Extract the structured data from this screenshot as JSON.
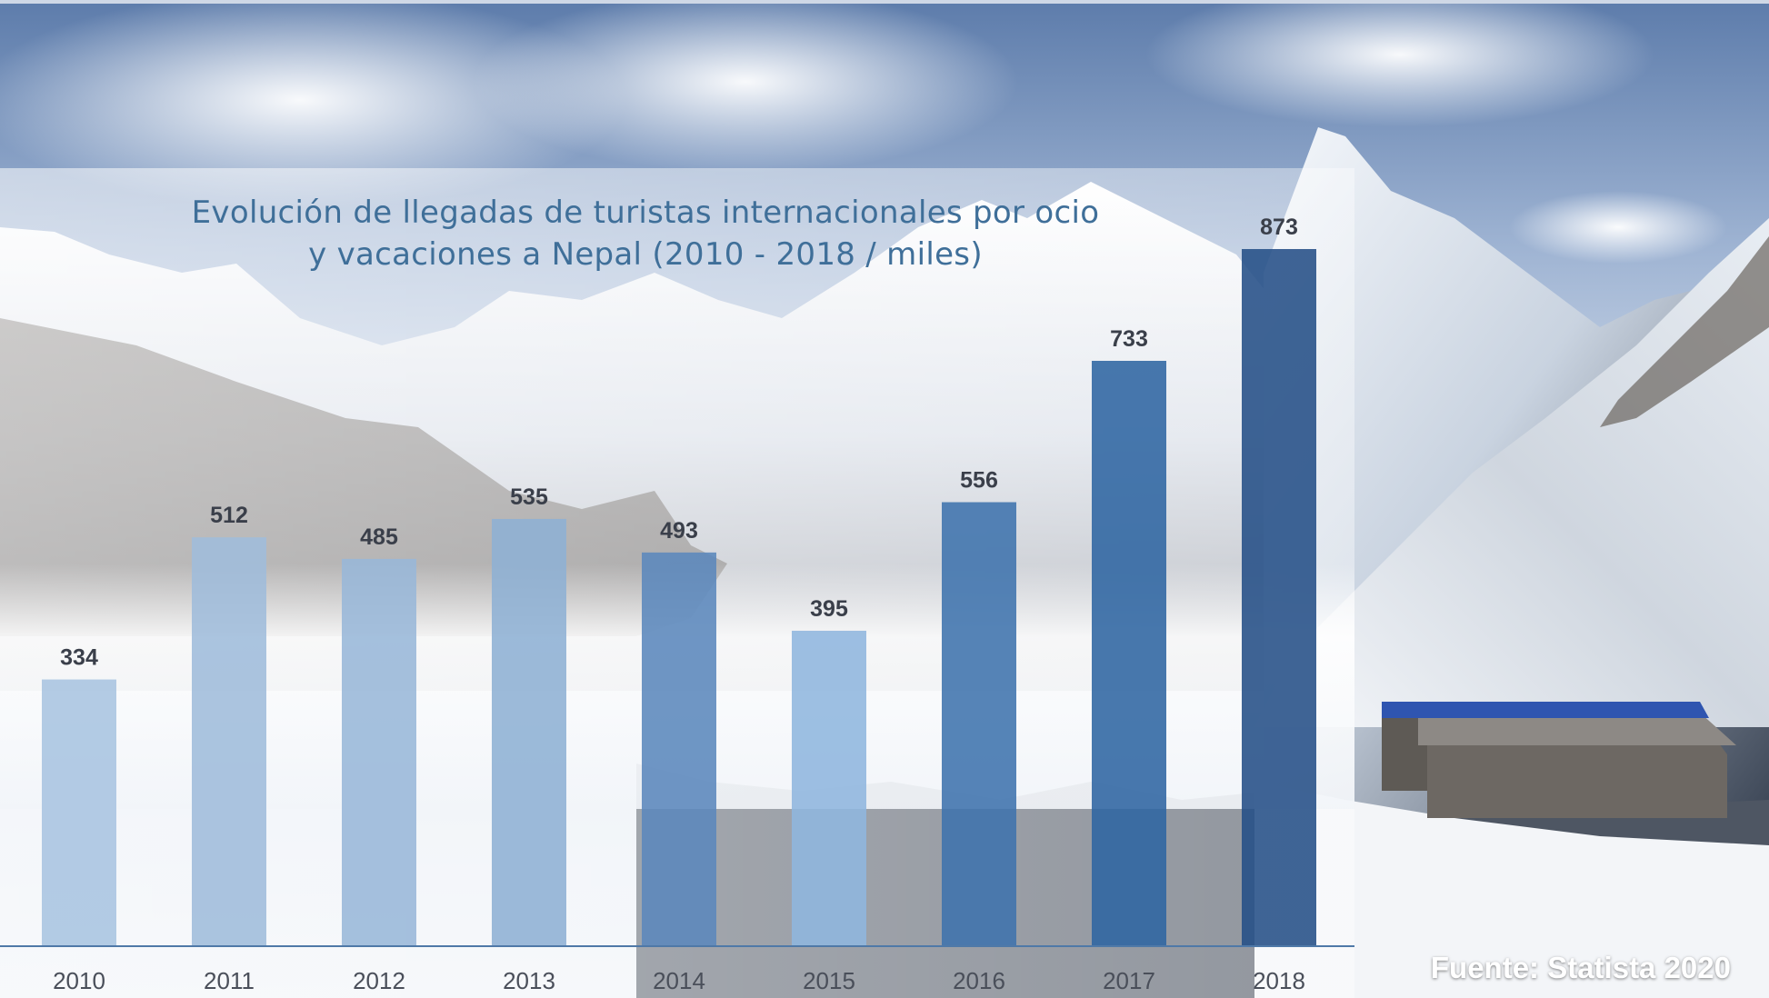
{
  "chart_data": {
    "type": "bar",
    "title": "Evolución de llegadas de turistas internacionales por ocio y vacaciones a Nepal (2010 - 2018 / miles)",
    "title_lines": [
      "Evolución de llegadas de turistas internacionales por ocio",
      "y vacaciones a Nepal (2010 - 2018 / miles)"
    ],
    "categories": [
      "2010",
      "2011",
      "2012",
      "2013",
      "2014",
      "2015",
      "2016",
      "2017",
      "2018"
    ],
    "values": [
      334,
      512,
      485,
      535,
      493,
      395,
      556,
      733,
      873
    ],
    "value_labels": [
      "334",
      "512",
      "485",
      "535",
      "493",
      "395",
      "556",
      "733",
      "873"
    ],
    "bar_colors": [
      "#a9c4e0",
      "#9fbcdb",
      "#98b7d8",
      "#8eb0d4",
      "#5b88bc",
      "#8fb6de",
      "#3f73ad",
      "#2f65a2",
      "#244f86"
    ],
    "xlabel": "",
    "ylabel": "",
    "ylim": [
      0,
      900
    ],
    "grid": false,
    "legend": "none"
  },
  "source": "Fuente: Statista 2020",
  "colors": {
    "title": "#3f6f99",
    "label": "#3a3f4a",
    "axis": "#4f79a8",
    "source": "#ffffff"
  }
}
